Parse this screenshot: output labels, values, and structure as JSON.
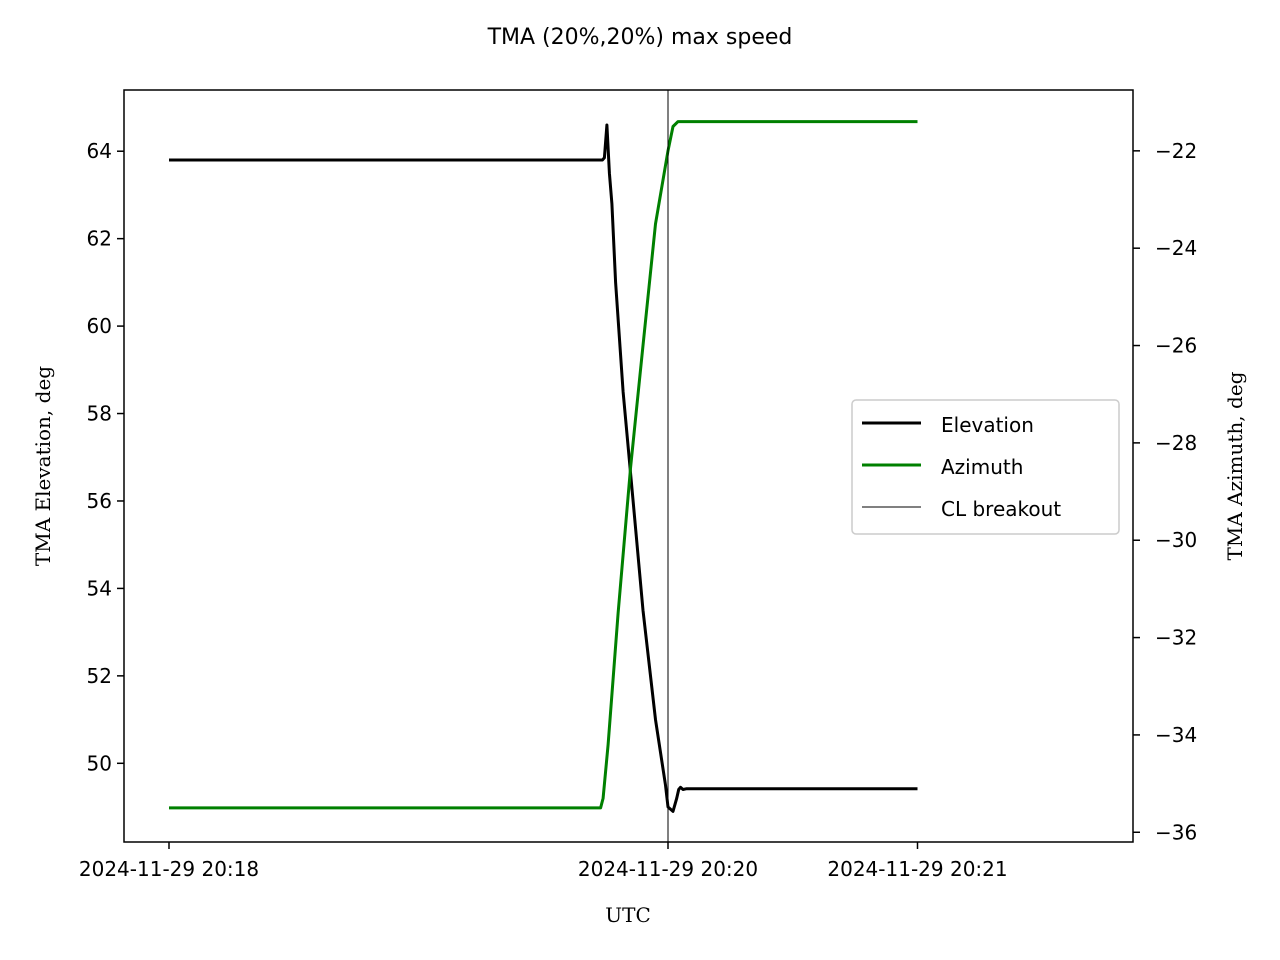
{
  "chart_data": {
    "type": "line",
    "title": "TMA (20%,20%) max speed",
    "xlabel": "UTC",
    "ylabel_left": "TMA Elevation, deg",
    "ylabel_right": "TMA Azimuth, deg",
    "x_ticks": [
      "2024-11-29 20:18",
      "2024-11-29 20:20",
      "2024-11-29 20:21"
    ],
    "x_tick_minutes": [
      18,
      20,
      21
    ],
    "y_left_ticks": [
      50,
      52,
      54,
      56,
      58,
      60,
      62,
      64
    ],
    "y_right_ticks": [
      -36,
      -34,
      -32,
      -30,
      -28,
      -26,
      -24,
      -22
    ],
    "y_right_tick_labels": [
      "−36",
      "−34",
      "−32",
      "−30",
      "−28",
      "−26",
      "−24",
      "−22"
    ],
    "ylim_left": [
      48.2,
      65.4
    ],
    "ylim_right": [
      -36.2,
      -20.75
    ],
    "xlim_minutes": [
      17.82,
      21.18
    ],
    "legend_position": "center-right",
    "grid": false,
    "series": [
      {
        "name": "Elevation",
        "axis": "left",
        "color": "#000000",
        "x_minutes": [
          18.0,
          19.5,
          19.737,
          19.745,
          19.755,
          19.765,
          19.775,
          19.79,
          19.82,
          19.86,
          19.9,
          19.95,
          19.99,
          20.0,
          20.02,
          20.035,
          20.043,
          20.05,
          20.06,
          20.075,
          20.2,
          21.0
        ],
        "values": [
          63.8,
          63.8,
          63.8,
          63.85,
          64.6,
          63.5,
          62.8,
          61.0,
          58.5,
          56.0,
          53.5,
          51.0,
          49.5,
          49.0,
          48.9,
          49.2,
          49.4,
          49.45,
          49.4,
          49.42,
          49.42,
          49.42
        ]
      },
      {
        "name": "Azimuth",
        "axis": "right",
        "color": "#008000",
        "x_minutes": [
          18.0,
          19.73,
          19.74,
          19.76,
          19.8,
          19.85,
          19.9,
          19.95,
          20.0,
          20.02,
          20.04,
          20.06,
          21.0
        ],
        "values": [
          -35.5,
          -35.5,
          -35.3,
          -34.2,
          -31.5,
          -28.5,
          -26.0,
          -23.5,
          -22.0,
          -21.5,
          -21.4,
          -21.4,
          -21.4
        ]
      },
      {
        "name": "CL breakout",
        "type": "vline",
        "color": "#000000",
        "x_minutes": 20.0
      }
    ]
  }
}
